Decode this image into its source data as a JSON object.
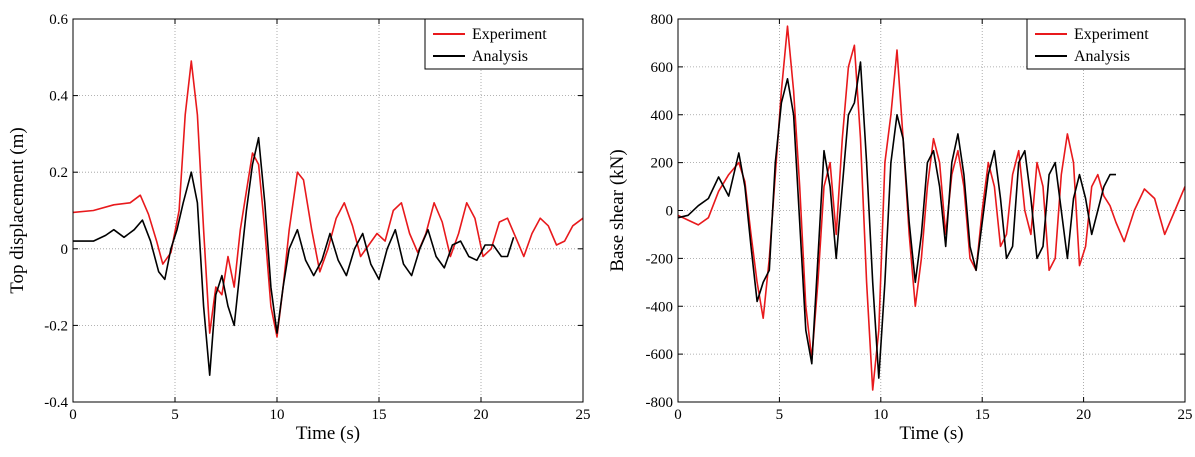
{
  "chart_data": [
    {
      "type": "line",
      "xlabel": "Time (s)",
      "ylabel": "Top displacement (m)",
      "xlim": [
        0,
        25
      ],
      "ylim": [
        -0.4,
        0.6
      ],
      "xticks": [
        0,
        5,
        10,
        15,
        20,
        25
      ],
      "yticks": [
        -0.4,
        -0.2,
        0,
        0.2,
        0.4,
        0.6
      ],
      "ytick_labels": [
        "-0.4",
        "-0.2",
        "0",
        "0.2",
        "0.4",
        "0.6"
      ],
      "grid": true,
      "legend": "top-right",
      "series": [
        {
          "name": "Experiment",
          "color": "#e8191c",
          "x": [
            0,
            1,
            2,
            2.8,
            3.3,
            3.7,
            4.1,
            4.4,
            4.8,
            5.2,
            5.5,
            5.8,
            6.1,
            6.4,
            6.7,
            7.0,
            7.3,
            7.6,
            7.9,
            8.2,
            8.5,
            8.8,
            9.1,
            9.4,
            9.7,
            10.0,
            10.3,
            10.6,
            11.0,
            11.3,
            11.7,
            12.1,
            12.5,
            12.9,
            13.3,
            13.7,
            14.1,
            14.5,
            14.9,
            15.3,
            15.7,
            16.1,
            16.5,
            16.9,
            17.3,
            17.7,
            18.1,
            18.5,
            18.9,
            19.3,
            19.7,
            20.1,
            20.5,
            20.9,
            21.3,
            21.7,
            22.1,
            22.5,
            22.9,
            23.3,
            23.7,
            24.1,
            24.5,
            25
          ],
          "y": [
            0.095,
            0.1,
            0.115,
            0.12,
            0.14,
            0.09,
            0.02,
            -0.04,
            -0.01,
            0.1,
            0.35,
            0.49,
            0.35,
            0.05,
            -0.22,
            -0.1,
            -0.12,
            -0.02,
            -0.1,
            0.05,
            0.15,
            0.25,
            0.22,
            0.05,
            -0.15,
            -0.23,
            -0.1,
            0.05,
            0.2,
            0.18,
            0.05,
            -0.06,
            0.0,
            0.08,
            0.12,
            0.06,
            -0.02,
            0.01,
            0.04,
            0.02,
            0.1,
            0.12,
            0.04,
            -0.01,
            0.04,
            0.12,
            0.07,
            -0.02,
            0.04,
            0.12,
            0.08,
            -0.02,
            0.0,
            0.07,
            0.08,
            0.03,
            -0.02,
            0.04,
            0.08,
            0.06,
            0.01,
            0.02,
            0.06,
            0.08
          ]
        },
        {
          "name": "Analysis",
          "color": "#000000",
          "x": [
            0,
            1,
            1.6,
            2.0,
            2.5,
            3.0,
            3.4,
            3.8,
            4.2,
            4.5,
            4.8,
            5.1,
            5.4,
            5.8,
            6.1,
            6.4,
            6.7,
            7.0,
            7.3,
            7.6,
            7.9,
            8.2,
            8.5,
            8.8,
            9.1,
            9.4,
            9.7,
            10.0,
            10.3,
            10.6,
            11.0,
            11.4,
            11.8,
            12.2,
            12.6,
            13.0,
            13.4,
            13.8,
            14.2,
            14.6,
            15.0,
            15.4,
            15.8,
            16.2,
            16.6,
            17.0,
            17.4,
            17.8,
            18.2,
            18.6,
            19.0,
            19.4,
            19.8,
            20.2,
            20.6,
            21.0,
            21.3,
            21.6
          ],
          "y": [
            0.02,
            0.02,
            0.035,
            0.05,
            0.03,
            0.05,
            0.075,
            0.02,
            -0.06,
            -0.08,
            0.0,
            0.05,
            0.12,
            0.2,
            0.12,
            -0.15,
            -0.33,
            -0.12,
            -0.07,
            -0.15,
            -0.2,
            -0.05,
            0.1,
            0.22,
            0.29,
            0.12,
            -0.1,
            -0.22,
            -0.1,
            0.0,
            0.05,
            -0.03,
            -0.07,
            -0.03,
            0.04,
            -0.03,
            -0.07,
            0.0,
            0.04,
            -0.04,
            -0.08,
            0.0,
            0.05,
            -0.04,
            -0.07,
            0.0,
            0.05,
            -0.02,
            -0.05,
            0.01,
            0.02,
            -0.02,
            -0.03,
            0.01,
            0.01,
            -0.02,
            -0.02,
            0.03
          ]
        }
      ]
    },
    {
      "type": "line",
      "xlabel": "Time (s)",
      "ylabel": "Base shear (kN)",
      "xlim": [
        0,
        25
      ],
      "ylim": [
        -800,
        800
      ],
      "xticks": [
        0,
        5,
        10,
        15,
        20,
        25
      ],
      "yticks": [
        -800,
        -600,
        -400,
        -200,
        0,
        200,
        400,
        600,
        800
      ],
      "ytick_labels": [
        "-800",
        "-600",
        "-400",
        "-200",
        "0",
        "200",
        "400",
        "600",
        "800"
      ],
      "grid": true,
      "legend": "top-right",
      "series": [
        {
          "name": "Experiment",
          "color": "#e8191c",
          "x": [
            0,
            0.5,
            1.0,
            1.5,
            2.0,
            2.5,
            3.0,
            3.3,
            3.6,
            3.9,
            4.2,
            4.5,
            4.8,
            5.1,
            5.4,
            5.7,
            6.0,
            6.3,
            6.6,
            6.9,
            7.2,
            7.5,
            7.8,
            8.1,
            8.4,
            8.7,
            9.0,
            9.3,
            9.6,
            9.9,
            10.2,
            10.5,
            10.8,
            11.1,
            11.4,
            11.7,
            12.0,
            12.3,
            12.6,
            12.9,
            13.2,
            13.5,
            13.8,
            14.1,
            14.4,
            14.7,
            15.0,
            15.3,
            15.6,
            15.9,
            16.2,
            16.5,
            16.8,
            17.1,
            17.4,
            17.7,
            18.0,
            18.3,
            18.6,
            18.9,
            19.2,
            19.5,
            19.8,
            20.1,
            20.4,
            20.7,
            21.0,
            21.3,
            21.6,
            22.0,
            22.5,
            23.0,
            23.5,
            24.0,
            24.5,
            25
          ],
          "y": [
            -20,
            -40,
            -60,
            -30,
            80,
            150,
            200,
            120,
            -100,
            -300,
            -450,
            -200,
            150,
            500,
            770,
            500,
            100,
            -400,
            -620,
            -300,
            100,
            200,
            -100,
            300,
            600,
            690,
            300,
            -300,
            -750,
            -500,
            200,
            400,
            670,
            300,
            -100,
            -400,
            -200,
            100,
            300,
            200,
            -100,
            150,
            250,
            100,
            -200,
            -250,
            0,
            200,
            100,
            -150,
            -100,
            150,
            250,
            0,
            -100,
            200,
            100,
            -250,
            -200,
            150,
            320,
            200,
            -230,
            -150,
            100,
            150,
            60,
            20,
            -50,
            -130,
            0,
            90,
            50,
            -100,
            0,
            100
          ]
        },
        {
          "name": "Analysis",
          "color": "#000000",
          "x": [
            0,
            0.5,
            1.0,
            1.5,
            2.0,
            2.5,
            3.0,
            3.3,
            3.6,
            3.9,
            4.2,
            4.5,
            4.8,
            5.1,
            5.4,
            5.7,
            6.0,
            6.3,
            6.6,
            6.9,
            7.2,
            7.5,
            7.8,
            8.1,
            8.4,
            8.7,
            9.0,
            9.3,
            9.6,
            9.9,
            10.2,
            10.5,
            10.8,
            11.1,
            11.4,
            11.7,
            12.0,
            12.3,
            12.6,
            12.9,
            13.2,
            13.5,
            13.8,
            14.1,
            14.4,
            14.7,
            15.0,
            15.3,
            15.6,
            15.9,
            16.2,
            16.5,
            16.8,
            17.1,
            17.4,
            17.7,
            18.0,
            18.3,
            18.6,
            18.9,
            19.2,
            19.5,
            19.8,
            20.1,
            20.4,
            20.7,
            21.0,
            21.3,
            21.6
          ],
          "y": [
            -30,
            -20,
            20,
            50,
            140,
            60,
            240,
            100,
            -150,
            -380,
            -300,
            -250,
            200,
            450,
            550,
            400,
            -50,
            -500,
            -640,
            -200,
            250,
            100,
            -200,
            100,
            400,
            450,
            620,
            200,
            -300,
            -700,
            -300,
            200,
            400,
            300,
            -50,
            -300,
            -100,
            200,
            250,
            100,
            -150,
            200,
            320,
            150,
            -150,
            -250,
            -50,
            150,
            250,
            50,
            -200,
            -150,
            200,
            250,
            50,
            -200,
            -150,
            150,
            200,
            0,
            -200,
            50,
            150,
            50,
            -100,
            0,
            100,
            150,
            150
          ]
        }
      ]
    }
  ]
}
